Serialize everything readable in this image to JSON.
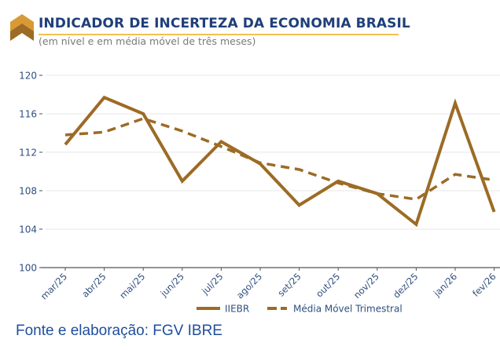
{
  "header": {
    "title": "INDICADOR DE INCERTEZA DA ECONOMIA BRASIL",
    "subtitle": "(em nível e em média móvel de três meses)"
  },
  "footer": {
    "source": "Fonte e elaboração: FGV IBRE"
  },
  "colors": {
    "title": "#1F3F7A",
    "accent_rule": "#F2C14E",
    "series": "#9C6B25",
    "axis_text": "#2F4F7F",
    "logo_top": "#D99A35",
    "logo_bottom": "#9C6B25"
  },
  "chart_data": {
    "type": "line",
    "title": "INDICADOR DE INCERTEZA DA ECONOMIA BRASIL",
    "subtitle": "(em nível e em média móvel de três meses)",
    "xlabel": "",
    "ylabel": "",
    "categories": [
      "mar/25",
      "abr/25",
      "mai/25",
      "jun/25",
      "jul/25",
      "ago/25",
      "set/25",
      "out/25",
      "nov/25",
      "dez/25",
      "jan/26",
      "fev/26"
    ],
    "ylim": [
      100,
      120
    ],
    "yticks": [
      "100",
      "104",
      "108",
      "112",
      "116",
      "120"
    ],
    "grid": true,
    "legend_position": "bottom",
    "series": [
      {
        "name": "IIEBR",
        "style": "solid",
        "values": [
          112.8,
          117.7,
          116.0,
          109.0,
          113.1,
          110.8,
          106.5,
          109.0,
          107.7,
          104.5,
          117.1,
          105.8
        ]
      },
      {
        "name": "Média Móvel Trimestral",
        "style": "dashed",
        "values": [
          113.8,
          114.1,
          115.5,
          114.2,
          112.6,
          110.9,
          110.2,
          108.8,
          107.7,
          107.1,
          109.7,
          109.1
        ]
      }
    ]
  }
}
